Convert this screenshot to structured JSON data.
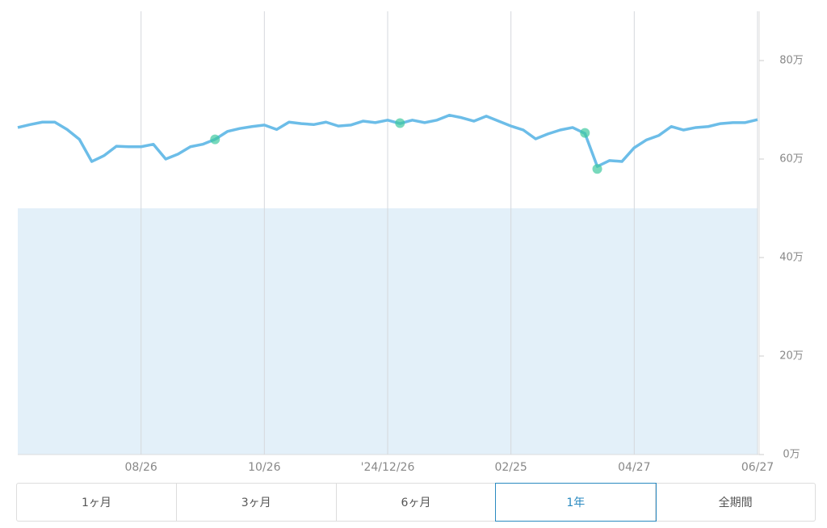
{
  "chart_data": {
    "type": "line",
    "categories": [
      null,
      null,
      null,
      null,
      null,
      null,
      null,
      null,
      null,
      null,
      "08/26",
      null,
      null,
      null,
      null,
      null,
      null,
      null,
      null,
      null,
      "10/26",
      null,
      null,
      null,
      null,
      null,
      null,
      null,
      null,
      null,
      "'24/12/26",
      null,
      null,
      null,
      null,
      null,
      null,
      null,
      null,
      null,
      "02/25",
      null,
      null,
      null,
      null,
      null,
      null,
      null,
      null,
      null,
      "04/27",
      null,
      null,
      null,
      null,
      null,
      null,
      null,
      null,
      null,
      "06/27"
    ],
    "values": [
      66.4,
      67,
      67.5,
      67.5,
      66,
      64,
      59.5,
      60.7,
      62.6,
      62.5,
      62.5,
      63,
      60,
      61,
      62.5,
      63,
      64,
      65.6,
      66.2,
      66.6,
      66.9,
      66,
      67.5,
      67.2,
      67,
      67.5,
      66.7,
      66.9,
      67.7,
      67.4,
      67.9,
      67.2,
      67.9,
      67.4,
      67.9,
      68.9,
      68.4,
      67.7,
      68.7,
      67.7,
      66.7,
      65.9,
      64.1,
      65.1,
      65.9,
      66.4,
      65.2,
      58.5,
      59.7,
      59.5,
      62.3,
      63.9,
      64.8,
      66.6,
      65.9,
      66.4,
      66.6,
      67.2,
      67.4,
      67.4,
      68
    ],
    "color": "#6cbde8",
    "markers": {
      "color": "#3fc9a0",
      "values": [
        null,
        null,
        null,
        null,
        null,
        null,
        null,
        null,
        null,
        null,
        null,
        null,
        null,
        null,
        null,
        null,
        64,
        null,
        null,
        null,
        null,
        null,
        null,
        null,
        null,
        null,
        null,
        null,
        null,
        null,
        null,
        67.3,
        null,
        null,
        null,
        null,
        null,
        null,
        null,
        null,
        null,
        null,
        null,
        null,
        null,
        null,
        65.3,
        58,
        null,
        null,
        null,
        null,
        null,
        null,
        null,
        null,
        null,
        null,
        null,
        null,
        null
      ]
    },
    "band": {
      "range": [
        0,
        50
      ],
      "color": "#e3f0f9"
    },
    "ylim": [
      0,
      90
    ],
    "yticks": [
      {
        "value": 0,
        "label": "0万"
      },
      {
        "value": 20,
        "label": "20万"
      },
      {
        "value": 40,
        "label": "40万"
      },
      {
        "value": 60,
        "label": "60万"
      },
      {
        "value": 80,
        "label": "80万"
      }
    ],
    "grid": true
  },
  "tabs": {
    "items": [
      "1ヶ月",
      "3ヶ月",
      "6ヶ月",
      "1年",
      "全期間"
    ],
    "active": 3
  }
}
